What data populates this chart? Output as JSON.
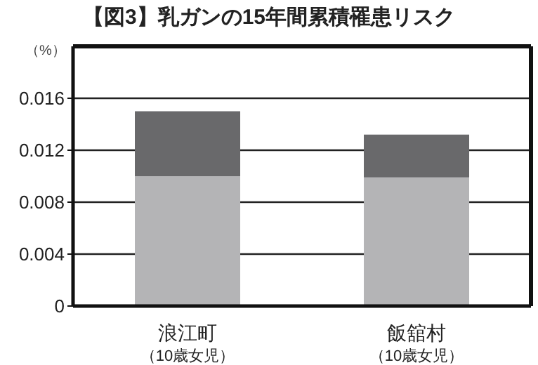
{
  "chart_data": {
    "type": "bar",
    "title": "【図3】乳ガンの15年間累積罹患リスク",
    "ylabel": "（%）",
    "categories": [
      "浪江町（10歳女児）",
      "飯舘村（10歳女児）"
    ],
    "stacked": true,
    "series": [
      {
        "color": "#b4b4b6",
        "values": [
          0.01,
          0.0099
        ]
      },
      {
        "color": "#69696b",
        "values": [
          0.005,
          0.0033
        ]
      }
    ],
    "ylim": [
      0,
      0.02
    ],
    "yticks": [
      0,
      0.004,
      0.008,
      0.012,
      0.016
    ],
    "grid": "y",
    "legend": false
  }
}
